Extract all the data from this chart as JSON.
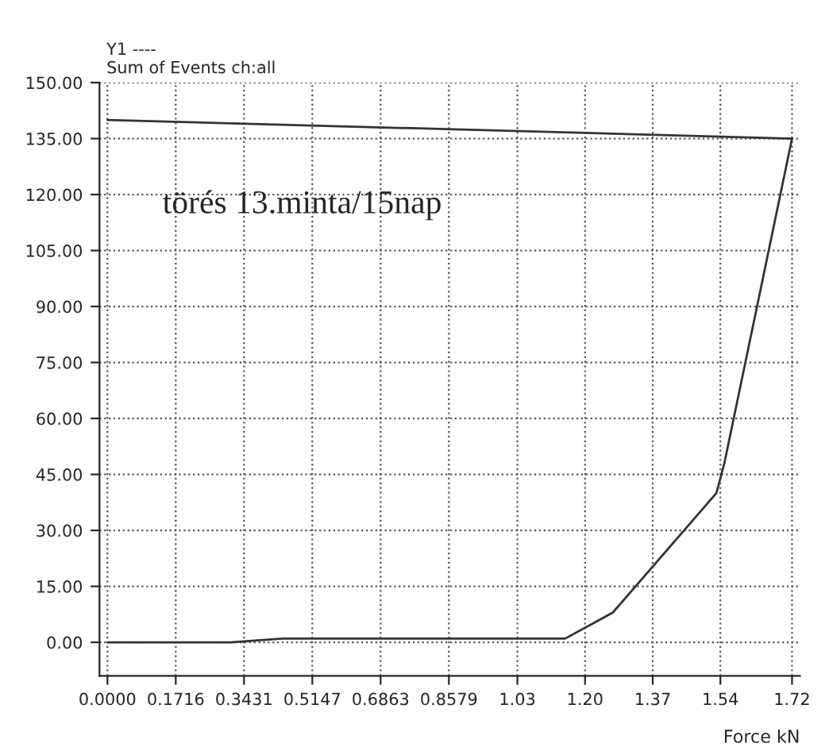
{
  "chart_data": {
    "type": "line",
    "ylabel": "Y1 ----\nSum of Events ch:all",
    "xlabel": "Force kN",
    "annotations": [
      "törés 13.minta/15nap"
    ],
    "series": [
      {
        "color": "#333333",
        "x": [
          0,
          0.31,
          0.35,
          0.44,
          1.15,
          1.27,
          1.53,
          1.55,
          1.72
        ],
        "values": [
          0,
          0,
          0.3,
          1,
          1,
          8,
          40,
          48,
          135
        ]
      },
      {
        "color": "#333333",
        "x": [
          0,
          1.72
        ],
        "values": [
          140,
          135
        ]
      }
    ],
    "xlim": [
      -0.02,
      1.74
    ],
    "ylim": [
      -9,
      150
    ],
    "xticks": [
      {
        "value": 0,
        "label": "0.0000"
      },
      0.1716,
      0.3431,
      0.5147,
      0.6863,
      0.8579,
      1.03,
      {
        "value": 1.2,
        "label": "1.20"
      },
      1.37,
      1.54,
      1.72
    ],
    "yticks": [
      {
        "value": 0,
        "label": "0.00"
      },
      {
        "value": 15,
        "label": "15.00"
      },
      {
        "value": 30,
        "label": "30.00"
      },
      {
        "value": 45,
        "label": "45.00"
      },
      {
        "value": 60,
        "label": "60.00"
      },
      {
        "value": 75,
        "label": "75.00"
      },
      {
        "value": 90,
        "label": "90.00"
      },
      {
        "value": 105,
        "label": "105.00"
      },
      {
        "value": 120,
        "label": "120.00"
      },
      {
        "value": 135,
        "label": "135.00"
      },
      {
        "value": 150,
        "label": "150.00"
      }
    ],
    "grid": true,
    "line_style": "solid",
    "marker": "none"
  }
}
